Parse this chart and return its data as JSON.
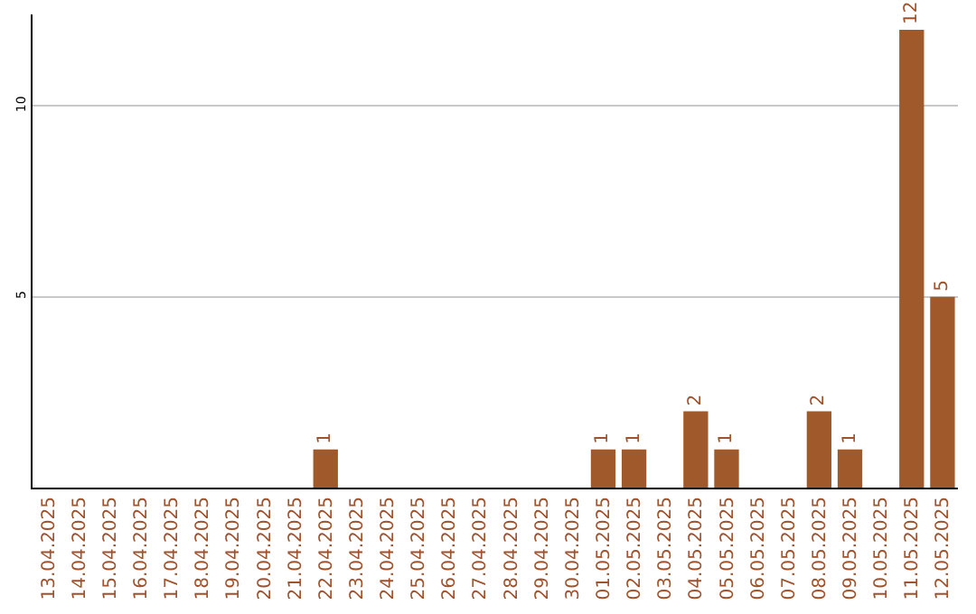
{
  "chart_data": {
    "type": "bar",
    "categories": [
      "13.04.2025",
      "14.04.2025",
      "15.04.2025",
      "16.04.2025",
      "17.04.2025",
      "18.04.2025",
      "19.04.2025",
      "20.04.2025",
      "21.04.2025",
      "22.04.2025",
      "23.04.2025",
      "24.04.2025",
      "25.04.2025",
      "26.04.2025",
      "27.04.2025",
      "28.04.2025",
      "29.04.2025",
      "30.04.2025",
      "01.05.2025",
      "02.05.2025",
      "03.05.2025",
      "04.05.2025",
      "05.05.2025",
      "06.05.2025",
      "07.05.2025",
      "08.05.2025",
      "09.05.2025",
      "10.05.2025",
      "11.05.2025",
      "12.05.2025"
    ],
    "values": [
      0,
      0,
      0,
      0,
      0,
      0,
      0,
      0,
      0,
      1,
      0,
      0,
      0,
      0,
      0,
      0,
      0,
      0,
      1,
      1,
      0,
      2,
      1,
      0,
      0,
      2,
      1,
      0,
      12,
      5
    ],
    "value_labels": [
      null,
      null,
      null,
      null,
      null,
      null,
      null,
      null,
      null,
      "1",
      null,
      null,
      null,
      null,
      null,
      null,
      null,
      null,
      "1",
      "1",
      null,
      "2",
      "1",
      null,
      null,
      "2",
      "1",
      null,
      "12",
      "5"
    ],
    "color": "#a0592a",
    "ylim": [
      0,
      12.4
    ],
    "yticks": [
      5,
      10
    ],
    "grid": "y"
  }
}
